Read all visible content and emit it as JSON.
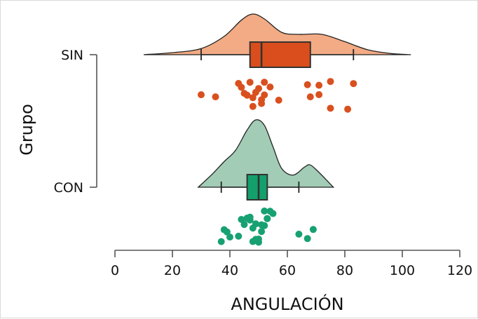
{
  "chart_data": {
    "type": "raincloud",
    "xlabel": "ANGULACIÓN",
    "ylabel": "Grupo",
    "xlim": [
      0,
      120
    ],
    "xticks": [
      0,
      20,
      40,
      60,
      80,
      100,
      120
    ],
    "grid": false,
    "legend": "none",
    "series": [
      {
        "name": "SIN",
        "fill_color": "#f2ab84",
        "box_color": "#d94e1c",
        "point_color": "#d9501f",
        "density_range": [
          10,
          103
        ],
        "density": {
          "x": [
            10,
            20,
            30,
            38,
            44,
            48,
            52,
            58,
            64,
            72,
            80,
            88,
            96,
            103
          ],
          "y": [
            0.0,
            0.05,
            0.15,
            0.45,
            0.85,
            1.0,
            0.88,
            0.55,
            0.5,
            0.5,
            0.32,
            0.12,
            0.03,
            0.0
          ]
        },
        "box": {
          "whisker_low": 30,
          "q1": 47,
          "median": 51,
          "q3": 68,
          "whisker_high": 83
        },
        "points": [
          30,
          35,
          43,
          44,
          45,
          46,
          47,
          48,
          48,
          49,
          50,
          51,
          51,
          52,
          52,
          54,
          57,
          67,
          68,
          71,
          71,
          75,
          75,
          81,
          83
        ]
      },
      {
        "name": "CON",
        "fill_color": "#a2ccb6",
        "box_color": "#13a06c",
        "point_color": "#17a172",
        "density_range": [
          29,
          76
        ],
        "density": {
          "x": [
            29,
            34,
            38,
            42,
            46,
            49,
            52,
            55,
            58,
            62,
            66,
            68,
            71,
            76
          ],
          "y": [
            0.0,
            0.2,
            0.38,
            0.55,
            0.85,
            1.0,
            0.92,
            0.6,
            0.28,
            0.18,
            0.3,
            0.33,
            0.22,
            0.0
          ]
        },
        "box": {
          "whisker_low": 37,
          "q1": 46,
          "median": 50,
          "q3": 53,
          "whisker_high": 64
        },
        "points": [
          37,
          38,
          39,
          40,
          43,
          44,
          45,
          46,
          46,
          47,
          47,
          48,
          48,
          49,
          49,
          50,
          50,
          51,
          51,
          52,
          52,
          53,
          53,
          54,
          55,
          64,
          67,
          69
        ]
      }
    ]
  }
}
